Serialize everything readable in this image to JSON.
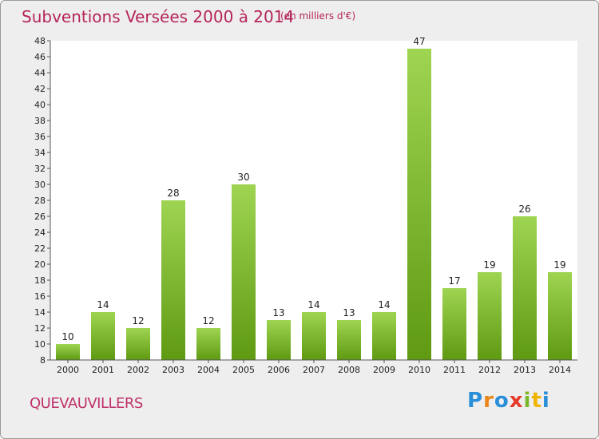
{
  "title": "Subventions Versées 2000 à 2014",
  "subtitle": "(en milliers d'€)",
  "commune": "QUEVAUVILLERS",
  "logo": {
    "letters": [
      "P",
      "r",
      "o",
      "x",
      "i",
      "t",
      "i"
    ],
    "colors": [
      "#2a8fd8",
      "#e8861a",
      "#2a8fd8",
      "#e63a2a",
      "#7ab828",
      "#f0b400",
      "#2a8fd8"
    ]
  },
  "colors": {
    "title": "#b5245a",
    "bar_top": "#9ed451",
    "bar_bottom": "#5f9a12",
    "plot_background": "#ffffff",
    "frame_background": "#eeeeee"
  },
  "chart_data": {
    "type": "bar",
    "categories": [
      "2000",
      "2001",
      "2002",
      "2003",
      "2004",
      "2005",
      "2006",
      "2007",
      "2008",
      "2009",
      "2010",
      "2011",
      "2012",
      "2013",
      "2014"
    ],
    "values": [
      10,
      14,
      12,
      28,
      12,
      30,
      13,
      14,
      13,
      14,
      47,
      17,
      19,
      26,
      19
    ],
    "title": "Subventions Versées 2000 à 2014",
    "xlabel": "",
    "ylabel": "",
    "ylim": [
      8,
      48
    ],
    "yticks": [
      8,
      10,
      12,
      14,
      16,
      18,
      20,
      22,
      24,
      26,
      28,
      30,
      32,
      34,
      36,
      38,
      40,
      42,
      44,
      46,
      48
    ],
    "grid": false,
    "data_labels": true
  }
}
